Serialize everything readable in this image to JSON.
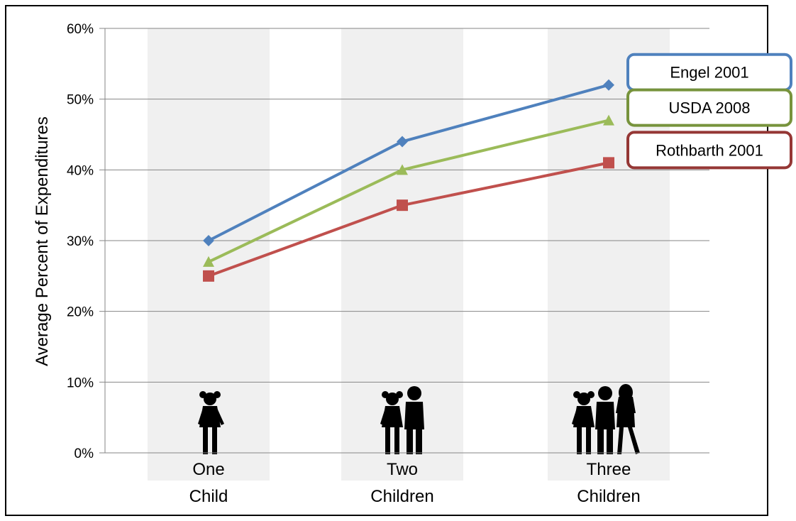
{
  "chart_data": {
    "type": "line",
    "categories": [
      "One Child",
      "Two Children",
      "Three Children"
    ],
    "category_lines": [
      [
        "One",
        "Child"
      ],
      [
        "Two",
        "Children"
      ],
      [
        "Three",
        "Children"
      ]
    ],
    "ylabel": "Average Percent of Expenditures",
    "ylim": [
      0,
      60
    ],
    "yticks": [
      "0%",
      "10%",
      "20%",
      "30%",
      "40%",
      "50%",
      "60%"
    ],
    "grid": true,
    "legend": "right",
    "series": [
      {
        "name": "Engel 2001",
        "values": [
          30,
          44,
          52
        ],
        "color": "#4f81bd",
        "marker": "diamond"
      },
      {
        "name": "USDA 2008",
        "values": [
          27,
          40,
          47
        ],
        "color": "#9bbb59",
        "marker": "triangle"
      },
      {
        "name": "Rothbarth 2001",
        "values": [
          25,
          35,
          41
        ],
        "color": "#c0504d",
        "marker": "square"
      }
    ]
  }
}
